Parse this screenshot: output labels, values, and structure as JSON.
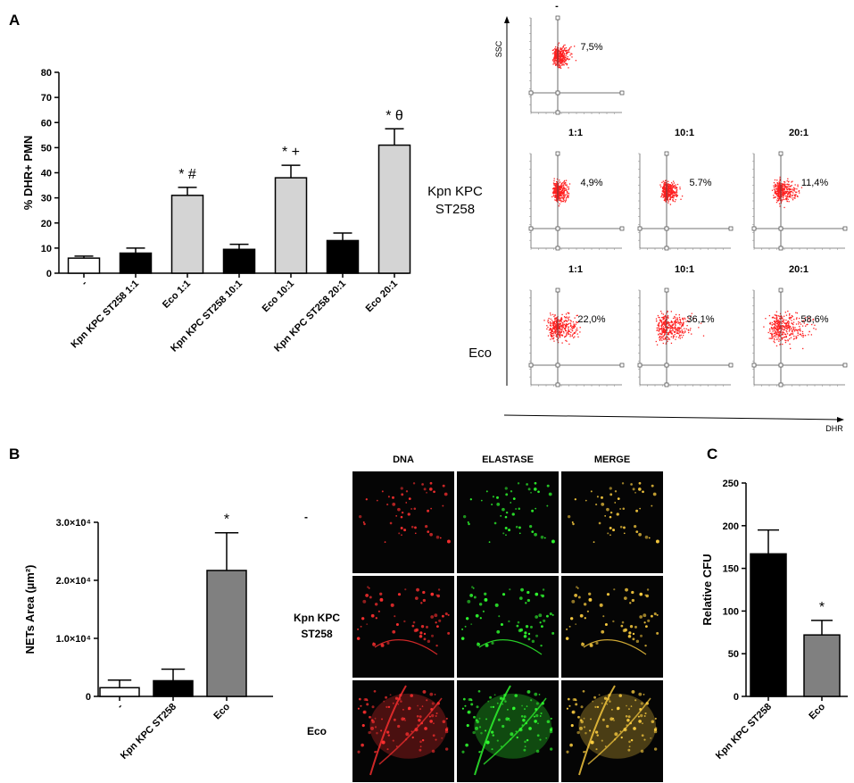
{
  "panels": {
    "a": "A",
    "b": "B",
    "c": "C"
  },
  "chart_data": [
    {
      "id": "A",
      "type": "bar",
      "categories": [
        "-",
        "Kpn KPC ST258 1:1",
        "Eco 1:1",
        "Kpn KPC ST258 10:1",
        "Eco 10:1",
        "Kpn KPC ST258 20:1",
        "Eco 20:1"
      ],
      "values": [
        6,
        8,
        31,
        9.5,
        38,
        13,
        51
      ],
      "errors": [
        0.8,
        2,
        3.2,
        2,
        5,
        3,
        6.5
      ],
      "annotations": [
        "",
        "",
        "* #",
        "",
        "* +",
        "",
        "* θ"
      ],
      "bar_colors": [
        "#ffffff",
        "#000000",
        "#d4d4d4",
        "#000000",
        "#d4d4d4",
        "#000000",
        "#d4d4d4"
      ],
      "ylabel": "% DHR+ PMN",
      "ylim": [
        0,
        80
      ],
      "yticks": [
        "0",
        "10",
        "20",
        "30",
        "40",
        "50",
        "60",
        "70",
        "80"
      ]
    },
    {
      "id": "B",
      "type": "bar",
      "categories": [
        "-",
        "Kpn KPC ST258",
        "Eco"
      ],
      "values": [
        1500,
        2700,
        21700
      ],
      "errors": [
        1300,
        2000,
        6500
      ],
      "annotations": [
        "",
        "",
        "*"
      ],
      "bar_colors": [
        "#ffffff",
        "#000000",
        "#808080"
      ],
      "ylabel": "NETs Area (µm²)",
      "ylim": [
        0,
        30000
      ],
      "yticks": [
        "0",
        "1.0×10⁴",
        "2.0×10⁴",
        "3.0×10⁴"
      ]
    },
    {
      "id": "C",
      "type": "bar",
      "categories": [
        "Kpn KPC ST258",
        "Eco"
      ],
      "values": [
        167,
        72
      ],
      "errors": [
        28,
        17
      ],
      "annotations": [
        "",
        "*"
      ],
      "bar_colors": [
        "#000000",
        "#808080"
      ],
      "ylabel": "Relative CFU",
      "ylim": [
        0,
        250
      ],
      "yticks": [
        "0",
        "50",
        "100",
        "150",
        "200",
        "250"
      ]
    }
  ],
  "flow": {
    "top_label": "-",
    "x_axis": "DHR",
    "y_axis": "SSC",
    "control_pct": "7,5%",
    "ratios": [
      "1:1",
      "10:1",
      "20:1"
    ],
    "rows": [
      {
        "label": [
          "Kpn KPC",
          "ST258"
        ],
        "pcts": [
          "4,9%",
          "5.7%",
          "11,4%"
        ],
        "spread": [
          0.25,
          0.3,
          0.45
        ]
      },
      {
        "label": [
          "Eco"
        ],
        "pcts": [
          "22,0%",
          "36,1%",
          "58,6%"
        ],
        "spread": [
          0.7,
          0.85,
          0.95
        ]
      }
    ],
    "control_spread": 0.3,
    "dot_color": "#ff2020"
  },
  "microscopy": {
    "columns": [
      "DNA",
      "ELASTASE",
      "MERGE"
    ],
    "rows": [
      {
        "label": [
          "-"
        ],
        "density": 0.15
      },
      {
        "label": [
          "Kpn KPC",
          "ST258"
        ],
        "density": 0.3
      },
      {
        "label": [
          "Eco"
        ],
        "density": 0.9
      }
    ],
    "channel_colors": [
      "#ff3030",
      "#30ff30",
      "#ffd040"
    ]
  }
}
